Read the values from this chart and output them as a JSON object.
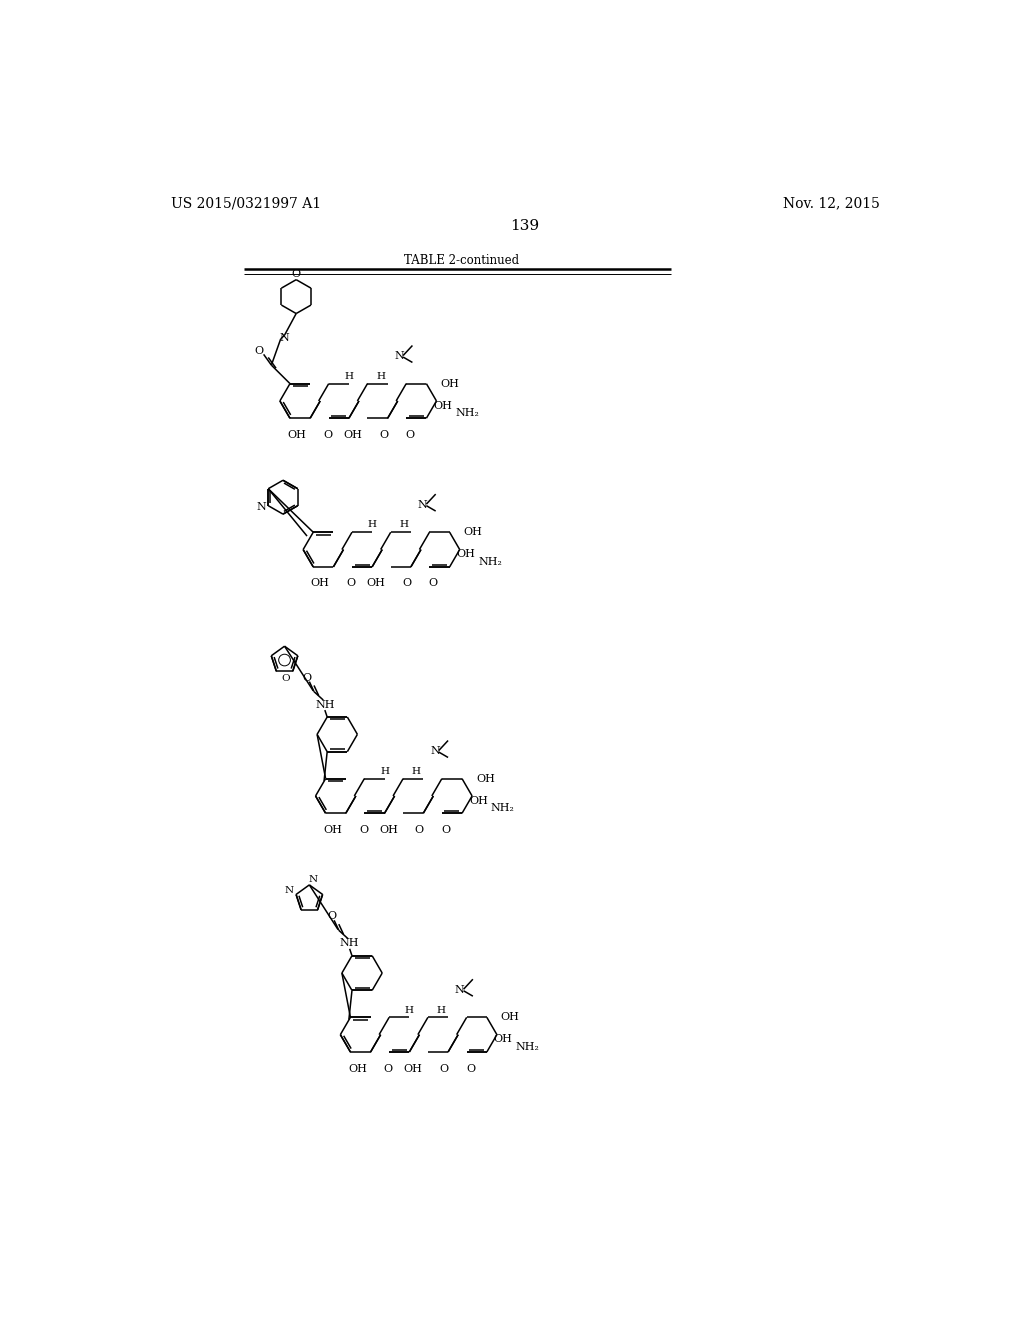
{
  "page_title_left": "US 2015/0321997 A1",
  "page_title_right": "Nov. 12, 2015",
  "page_number": "139",
  "table_label": "TABLE 2-continued",
  "background_color": "#ffffff",
  "text_color": "#000000",
  "line_color": "#000000"
}
